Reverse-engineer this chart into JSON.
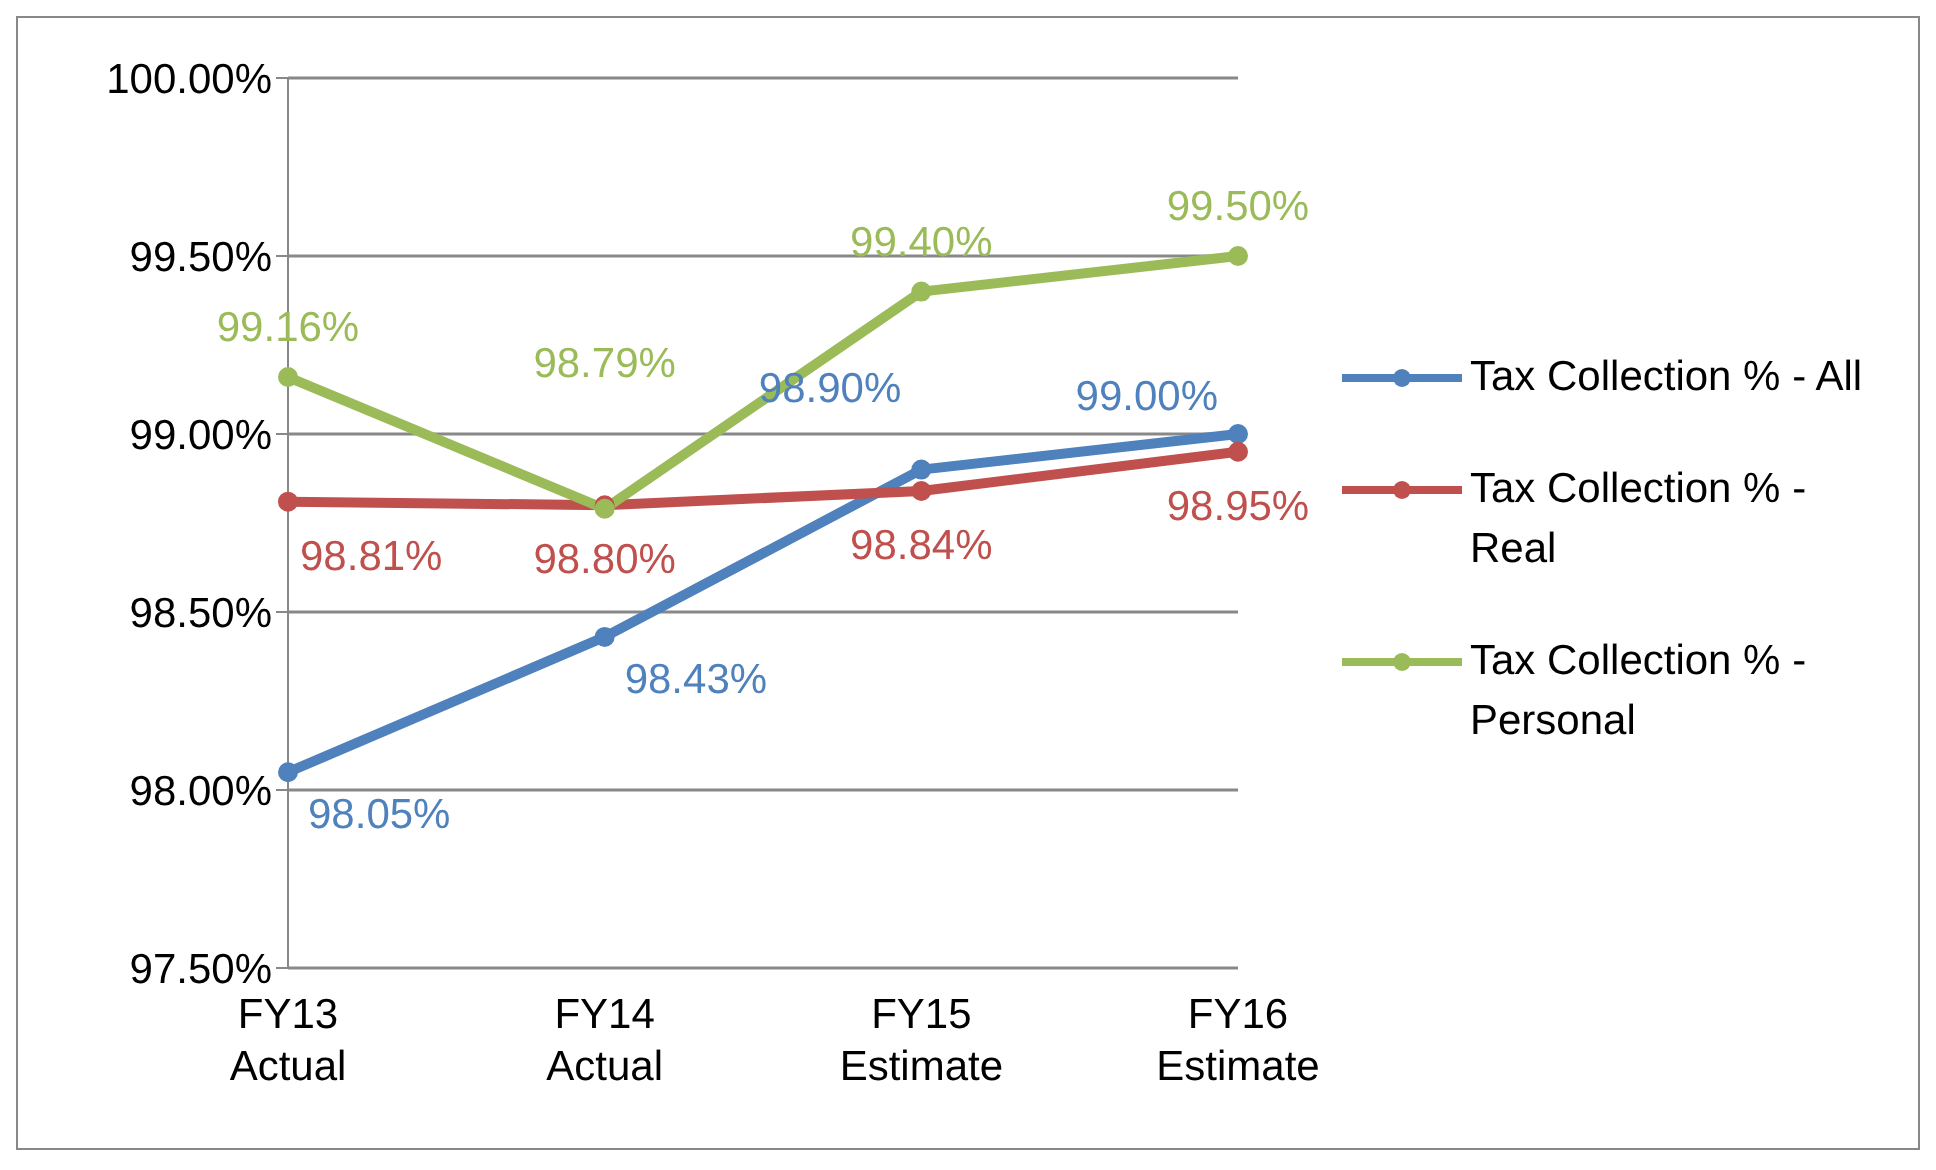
{
  "chart_data": {
    "type": "line",
    "categories": [
      "FY13 Actual",
      "FY14 Actual",
      "FY15 Estimate",
      "FY16 Estimate"
    ],
    "series": [
      {
        "name": "Tax Collection % - All",
        "color": "#4f81bd",
        "values": [
          98.05,
          98.43,
          98.9,
          99.0
        ],
        "value_labels": [
          "98.05%",
          "98.43%",
          "98.90%",
          "99.00%"
        ]
      },
      {
        "name": "Tax Collection % - Real",
        "color": "#c0504d",
        "values": [
          98.81,
          98.8,
          98.84,
          98.95
        ],
        "value_labels": [
          "98.81%",
          "98.80%",
          "98.84%",
          "98.95%"
        ]
      },
      {
        "name": "Tax Collection % - Personal",
        "color": "#9bbb59",
        "values": [
          99.16,
          98.79,
          99.4,
          99.5
        ],
        "value_labels": [
          "99.16%",
          "98.79%",
          "99.40%",
          "99.50%"
        ]
      }
    ],
    "ylim": [
      97.5,
      100
    ],
    "yticks": [
      {
        "value": 97.5,
        "label": "97.50%"
      },
      {
        "value": 98,
        "label": "98.00%"
      },
      {
        "value": 98.5,
        "label": "98.50%"
      },
      {
        "value": 99,
        "label": "99.00%"
      },
      {
        "value": 99.5,
        "label": "99.50%"
      },
      {
        "value": 100,
        "label": "100.00%"
      }
    ],
    "grid": "y",
    "legend": "right",
    "marker": "circle",
    "line_style": "solid"
  }
}
